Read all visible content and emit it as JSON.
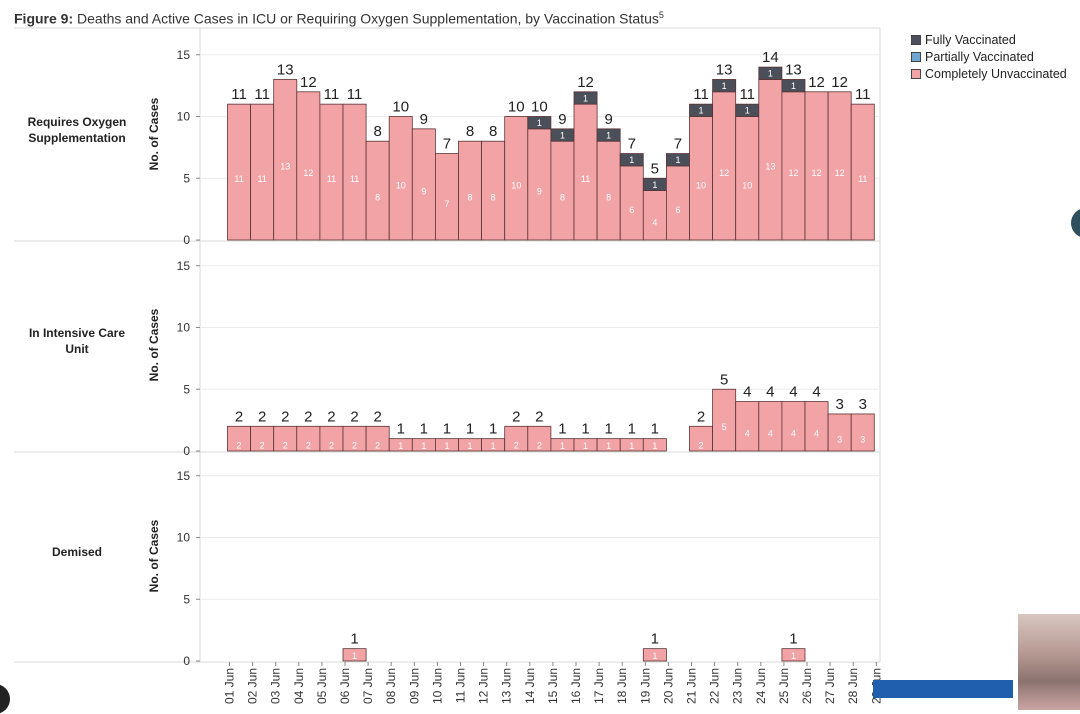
{
  "figure": {
    "title_prefix": "Figure 9:",
    "title_text": " Deaths and Active Cases in ICU or Requiring Oxygen Supplementation, by Vaccination Status",
    "title_sup": "5"
  },
  "legend": [
    {
      "label": "Fully Vaccinated",
      "color": "#4a4f59"
    },
    {
      "label": "Partially Vaccinated",
      "color": "#6ea6cf"
    },
    {
      "label": "Completely Unvaccinated",
      "color": "#f2a3a6"
    }
  ],
  "colors": {
    "fully": "#4a4f59",
    "unvax": "#f2a3a6",
    "bar_stroke": "#5a3335",
    "grid": "#ececec",
    "panel_line": "#d8d8d8"
  },
  "chart_data": {
    "type": "bar",
    "stacked": true,
    "x": [
      "01 Jun",
      "02 Jun",
      "03 Jun",
      "04 Jun",
      "05 Jun",
      "06 Jun",
      "07 Jun",
      "08 Jun",
      "09 Jun",
      "10 Jun",
      "11 Jun",
      "12 Jun",
      "13 Jun",
      "14 Jun",
      "15 Jun",
      "16 Jun",
      "17 Jun",
      "18 Jun",
      "19 Jun",
      "20 Jun",
      "21 Jun",
      "22 Jun",
      "23 Jun",
      "24 Jun",
      "25 Jun",
      "26 Jun",
      "27 Jun",
      "28 Jun",
      "29 Jun"
    ],
    "y_axis_label": "No. of Cases",
    "ylim": [
      0,
      15
    ],
    "yticks": [
      0,
      5,
      10,
      15
    ],
    "panels": [
      {
        "name": "Requires Oxygen Supplementation",
        "series": [
          {
            "name": "Completely Unvaccinated",
            "values": [
              11,
              11,
              13,
              12,
              11,
              11,
              8,
              10,
              9,
              7,
              8,
              8,
              10,
              9,
              8,
              11,
              8,
              6,
              4,
              6,
              10,
              12,
              10,
              13,
              12,
              12,
              12,
              11,
              null
            ]
          },
          {
            "name": "Fully Vaccinated",
            "values": [
              0,
              0,
              0,
              0,
              0,
              0,
              0,
              0,
              0,
              0,
              0,
              0,
              0,
              1,
              1,
              1,
              1,
              1,
              1,
              1,
              1,
              1,
              1,
              1,
              1,
              0,
              0,
              0,
              null
            ]
          }
        ],
        "totals": [
          11,
          11,
          13,
          12,
          11,
          11,
          8,
          10,
          9,
          7,
          8,
          8,
          10,
          10,
          9,
          12,
          9,
          7,
          5,
          7,
          11,
          13,
          11,
          14,
          13,
          12,
          12,
          11,
          null
        ]
      },
      {
        "name": "In Intensive Care Unit",
        "series": [
          {
            "name": "Completely Unvaccinated",
            "values": [
              2,
              2,
              2,
              2,
              2,
              2,
              2,
              1,
              1,
              1,
              1,
              1,
              2,
              2,
              1,
              1,
              1,
              1,
              1,
              null,
              2,
              5,
              4,
              4,
              4,
              4,
              3,
              3,
              null
            ]
          },
          {
            "name": "Fully Vaccinated",
            "values": [
              0,
              0,
              0,
              0,
              0,
              0,
              0,
              0,
              0,
              0,
              0,
              0,
              0,
              0,
              0,
              0,
              0,
              0,
              0,
              null,
              0,
              0,
              0,
              0,
              0,
              0,
              0,
              0,
              null
            ]
          }
        ],
        "totals": [
          2,
          2,
          2,
          2,
          2,
          2,
          2,
          1,
          1,
          1,
          1,
          1,
          2,
          2,
          1,
          1,
          1,
          1,
          1,
          null,
          2,
          5,
          4,
          4,
          4,
          4,
          3,
          3,
          null
        ]
      },
      {
        "name": "Demised",
        "series": [
          {
            "name": "Completely Unvaccinated",
            "values": [
              null,
              null,
              null,
              null,
              null,
              1,
              null,
              null,
              null,
              null,
              null,
              null,
              null,
              null,
              null,
              null,
              null,
              null,
              1,
              null,
              null,
              null,
              null,
              null,
              1,
              null,
              null,
              null,
              null
            ]
          }
        ],
        "totals": [
          null,
          null,
          null,
          null,
          null,
          1,
          null,
          null,
          null,
          null,
          null,
          null,
          null,
          null,
          null,
          null,
          null,
          null,
          1,
          null,
          null,
          null,
          null,
          null,
          1,
          null,
          null,
          null,
          null
        ]
      }
    ]
  }
}
